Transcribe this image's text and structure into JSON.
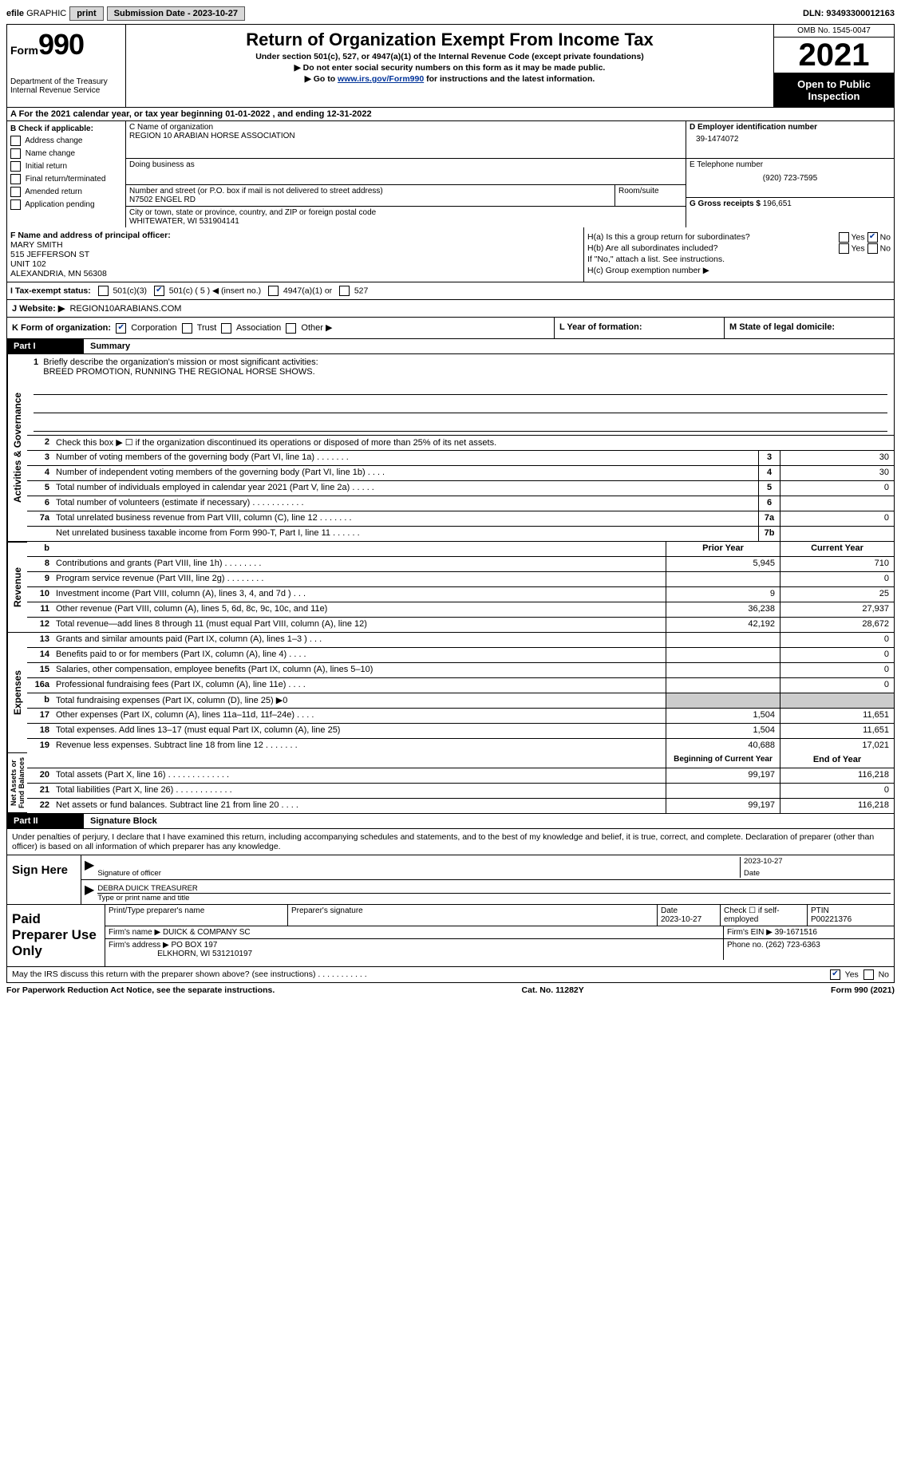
{
  "topbar": {
    "efile_prefix": "efile",
    "graphic": "GRAPHIC",
    "print": "print",
    "submission": "Submission Date - 2023-10-27",
    "dln": "DLN: 93493300012163"
  },
  "header": {
    "form_label": "Form",
    "form_num": "990",
    "title": "Return of Organization Exempt From Income Tax",
    "sub1": "Under section 501(c), 527, or 4947(a)(1) of the Internal Revenue Code (except private foundations)",
    "sub2": "▶ Do not enter social security numbers on this form as it may be made public.",
    "sub3_pre": "▶ Go to ",
    "sub3_link": "www.irs.gov/Form990",
    "sub3_post": " for instructions and the latest information.",
    "dept": "Department of the Treasury\nInternal Revenue Service",
    "omb": "OMB No. 1545-0047",
    "year": "2021",
    "open": "Open to Public Inspection"
  },
  "rowA": "A For the 2021 calendar year, or tax year beginning 01-01-2022    , and ending 12-31-2022",
  "colB": {
    "title": "B Check if applicable:",
    "items": [
      "Address change",
      "Name change",
      "Initial return",
      "Final return/terminated",
      "Amended return",
      "Application pending"
    ]
  },
  "colC": {
    "name_lbl": "C Name of organization",
    "name": "REGION 10 ARABIAN HORSE ASSOCIATION",
    "dba_lbl": "Doing business as",
    "addr_lbl": "Number and street (or P.O. box if mail is not delivered to street address)",
    "room_lbl": "Room/suite",
    "addr": "N7502 ENGEL RD",
    "city_lbl": "City or town, state or province, country, and ZIP or foreign postal code",
    "city": "WHITEWATER, WI  531904141"
  },
  "colD": {
    "ein_lbl": "D Employer identification number",
    "ein": "39-1474072",
    "tel_lbl": "E Telephone number",
    "tel": "(920) 723-7595",
    "gross_lbl": "G Gross receipts $",
    "gross": "196,651"
  },
  "rowF": {
    "lbl": "F Name and address of principal officer:",
    "name": "MARY SMITH",
    "l1": "515 JEFFERSON ST",
    "l2": "UNIT 102",
    "l3": "ALEXANDRIA, MN  56308"
  },
  "rowH": {
    "ha": "H(a)  Is this a group return for subordinates?",
    "hb": "H(b)  Are all subordinates included?",
    "note": "If \"No,\" attach a list. See instructions.",
    "hc": "H(c)  Group exemption number ▶"
  },
  "rowI": {
    "lbl": "I   Tax-exempt status:",
    "o1": "501(c)(3)",
    "o2_pre": "501(c) ( 5 ) ◀ (insert no.)",
    "o3": "4947(a)(1) or",
    "o4": "527"
  },
  "rowJ": {
    "lbl": "J   Website: ▶",
    "val": "REGION10ARABIANS.COM"
  },
  "rowK": {
    "k1_lbl": "K Form of organization:",
    "opts": [
      "Corporation",
      "Trust",
      "Association",
      "Other ▶"
    ],
    "k2": "L Year of formation:",
    "k3": "M State of legal domicile:"
  },
  "part1": {
    "hdr": "Part I",
    "title": "Summary",
    "l1_lbl": "Briefly describe the organization's mission or most significant activities:",
    "l1_val": "BREED PROMOTION, RUNNING THE REGIONAL HORSE SHOWS.",
    "l2": "Check this box ▶ ☐  if the organization discontinued its operations or disposed of more than 25% of its net assets.",
    "lines_gov": [
      {
        "n": "3",
        "d": "Number of voting members of the governing body (Part VI, line 1a)   .    .    .    .    .    .    .",
        "b": "3",
        "v": "30"
      },
      {
        "n": "4",
        "d": "Number of independent voting members of the governing body (Part VI, line 1b)   .    .    .    .",
        "b": "4",
        "v": "30"
      },
      {
        "n": "5",
        "d": "Total number of individuals employed in calendar year 2021 (Part V, line 2a)   .    .    .    .    .",
        "b": "5",
        "v": "0"
      },
      {
        "n": "6",
        "d": "Total number of volunteers (estimate if necessary)    .    .    .    .    .    .    .    .    .    .    .",
        "b": "6",
        "v": ""
      },
      {
        "n": "7a",
        "d": "Total unrelated business revenue from Part VIII, column (C), line 12    .    .    .    .    .    .    .",
        "b": "7a",
        "v": "0"
      },
      {
        "n": "",
        "d": "Net unrelated business taxable income from Form 990-T, Part I, line 11   .    .    .    .    .    .",
        "b": "7b",
        "v": ""
      }
    ],
    "col_prior": "Prior Year",
    "col_current": "Current Year",
    "revenue": [
      {
        "n": "8",
        "d": "Contributions and grants (Part VIII, line 1h)   .    .    .    .    .    .    .    .",
        "p": "5,945",
        "c": "710"
      },
      {
        "n": "9",
        "d": "Program service revenue (Part VIII, line 2g)   .    .    .    .    .    .    .    .",
        "p": "",
        "c": "0"
      },
      {
        "n": "10",
        "d": "Investment income (Part VIII, column (A), lines 3, 4, and 7d )   .    .    .",
        "p": "9",
        "c": "25"
      },
      {
        "n": "11",
        "d": "Other revenue (Part VIII, column (A), lines 5, 6d, 8c, 9c, 10c, and 11e)",
        "p": "36,238",
        "c": "27,937"
      },
      {
        "n": "12",
        "d": "Total revenue—add lines 8 through 11 (must equal Part VIII, column (A), line 12)",
        "p": "42,192",
        "c": "28,672"
      }
    ],
    "expenses": [
      {
        "n": "13",
        "d": "Grants and similar amounts paid (Part IX, column (A), lines 1–3 )   .    .    .",
        "p": "",
        "c": "0"
      },
      {
        "n": "14",
        "d": "Benefits paid to or for members (Part IX, column (A), line 4)   .    .    .    .",
        "p": "",
        "c": "0"
      },
      {
        "n": "15",
        "d": "Salaries, other compensation, employee benefits (Part IX, column (A), lines 5–10)",
        "p": "",
        "c": "0"
      },
      {
        "n": "16a",
        "d": "Professional fundraising fees (Part IX, column (A), line 11e)   .    .    .    .",
        "p": "",
        "c": "0"
      },
      {
        "n": "b",
        "d": "Total fundraising expenses (Part IX, column (D), line 25) ▶0",
        "p": "shade",
        "c": "shade"
      },
      {
        "n": "17",
        "d": "Other expenses (Part IX, column (A), lines 11a–11d, 11f–24e)   .    .    .    .",
        "p": "1,504",
        "c": "11,651"
      },
      {
        "n": "18",
        "d": "Total expenses. Add lines 13–17 (must equal Part IX, column (A), line 25)",
        "p": "1,504",
        "c": "11,651"
      },
      {
        "n": "19",
        "d": "Revenue less expenses. Subtract line 18 from line 12   .    .    .    .    .    .    .",
        "p": "40,688",
        "c": "17,021"
      }
    ],
    "col_begin": "Beginning of Current Year",
    "col_end": "End of Year",
    "net": [
      {
        "n": "20",
        "d": "Total assets (Part X, line 16)   .    .    .    .    .    .    .    .    .    .    .    .    .",
        "p": "99,197",
        "c": "116,218"
      },
      {
        "n": "21",
        "d": "Total liabilities (Part X, line 26)   .    .    .    .    .    .    .    .    .    .    .    .",
        "p": "",
        "c": "0"
      },
      {
        "n": "22",
        "d": "Net assets or fund balances. Subtract line 21 from line 20   .    .    .    .",
        "p": "99,197",
        "c": "116,218"
      }
    ],
    "vtabs": {
      "gov": "Activities & Governance",
      "rev": "Revenue",
      "exp": "Expenses",
      "net": "Net Assets or\nFund Balances"
    }
  },
  "part2": {
    "hdr": "Part II",
    "title": "Signature Block",
    "intro": "Under penalties of perjury, I declare that I have examined this return, including accompanying schedules and statements, and to the best of my knowledge and belief, it is true, correct, and complete. Declaration of preparer (other than officer) is based on all information of which preparer has any knowledge.",
    "sign_here": "Sign Here",
    "sig_officer": "Signature of officer",
    "sig_date": "2023-10-27",
    "date_lbl": "Date",
    "name_title": "DEBRA DUICK  TREASURER",
    "name_title_lbl": "Type or print name and title",
    "paid": "Paid Preparer Use Only",
    "pp_name_lbl": "Print/Type preparer's name",
    "pp_sig_lbl": "Preparer's signature",
    "pp_date_lbl": "Date",
    "pp_date": "2023-10-27",
    "pp_check_lbl": "Check ☐ if self-employed",
    "ptin_lbl": "PTIN",
    "ptin": "P00221376",
    "firm_name_lbl": "Firm's name      ▶",
    "firm_name": "DUICK & COMPANY SC",
    "firm_ein_lbl": "Firm's EIN ▶",
    "firm_ein": "39-1671516",
    "firm_addr_lbl": "Firm's address ▶",
    "firm_addr1": "PO BOX 197",
    "firm_addr2": "ELKHORN, WI  531210197",
    "phone_lbl": "Phone no.",
    "phone": "(262) 723-6363",
    "discuss": "May the IRS discuss this return with the preparer shown above? (see instructions)    .    .    .    .    .    .    .    .    .    .    .",
    "yes": "Yes",
    "no": "No"
  },
  "footer": {
    "l": "For Paperwork Reduction Act Notice, see the separate instructions.",
    "m": "Cat. No. 11282Y",
    "r": "Form 990 (2021)"
  }
}
